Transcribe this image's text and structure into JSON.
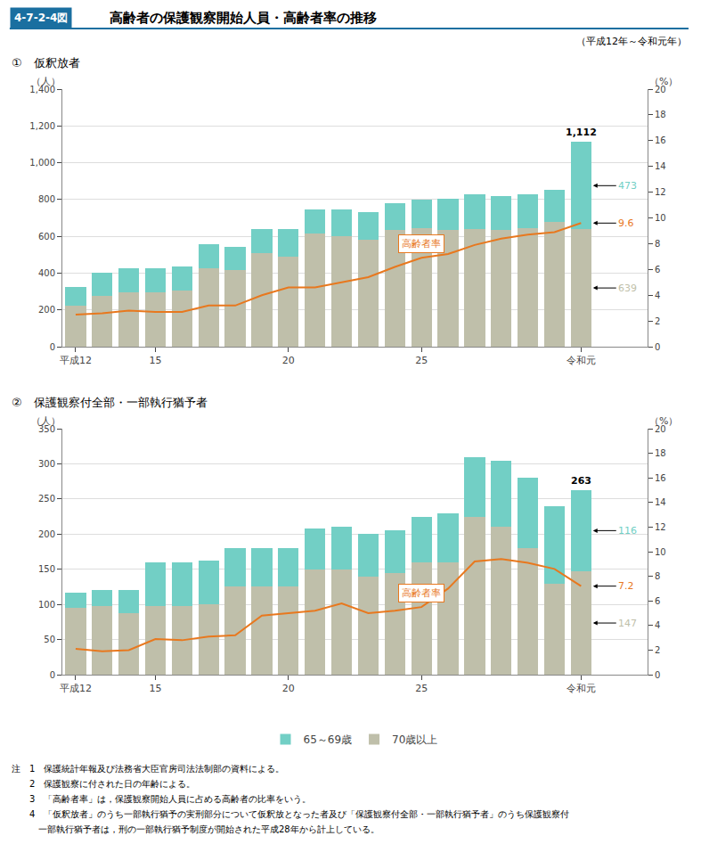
{
  "label": "4-7-2-4図",
  "title": "高齢者の保護観察開始人員・高齢者率の推移",
  "subtitle": "（平成12年～令和元年）",
  "color": "#1a6fa0",
  "legend": "bottom",
  "notes": [
    "注　1　保護統計年報及び法務省大臣官房司法法制部の資料による。",
    "　　2　保護観察に付された日の年齢による。",
    "　　3　「高齢者率」は，保護観察開始人員に占める高齢者の比率をいう。",
    "　　4　「仮釈放者」のうち一部執行猶予の実刑部分について仮釈放となった者及び「保護観察付全部・一部執行猶予者」のうち保護観察付",
    "　　　一部執行猶予者は，刑の一部執行猶予制度が開始された平成28年から計上している。"
  ],
  "chart_data": [
    {
      "type": "bar",
      "stacked": true,
      "grid": true,
      "title": "①　仮釈放者",
      "ylabel": "（人）",
      "y2label": "（%）",
      "categories": [
        "平成12",
        null,
        null,
        "15",
        null,
        null,
        null,
        null,
        "20",
        null,
        null,
        null,
        null,
        "25",
        null,
        null,
        null,
        null,
        null,
        "令和元"
      ],
      "series": [
        {
          "name": "70歳以上",
          "color": "#bfbfaa",
          "values": [
            225,
            275,
            295,
            295,
            305,
            425,
            415,
            510,
            490,
            615,
            600,
            580,
            635,
            645,
            635,
            640,
            635,
            645,
            680,
            639
          ]
        },
        {
          "name": "65～69歳",
          "color": "#72cfc5",
          "values": [
            100,
            125,
            130,
            130,
            130,
            130,
            130,
            130,
            150,
            130,
            145,
            150,
            145,
            155,
            170,
            190,
            185,
            185,
            175,
            473
          ]
        },
        {
          "name": "高齢者率",
          "type": "line",
          "axis": "y2",
          "color": "#e8781e",
          "values": [
            2.5,
            2.6,
            2.8,
            2.7,
            2.7,
            3.2,
            3.2,
            4.0,
            4.6,
            4.6,
            5.0,
            5.4,
            6.2,
            6.9,
            7.2,
            7.9,
            8.4,
            8.7,
            8.9,
            9.6
          ]
        }
      ],
      "ylim": [
        0,
        1400
      ],
      "yticks": [
        0,
        200,
        400,
        600,
        800,
        {
          "value": 1000,
          "label": "1,000"
        },
        {
          "value": 1200,
          "label": "1,200"
        },
        {
          "value": 1400,
          "label": "1,400"
        }
      ],
      "y2lim": [
        0,
        20
      ],
      "y2ticks": [
        0,
        2,
        4,
        6,
        8,
        10,
        12,
        14,
        16,
        18,
        20
      ],
      "annotations": [
        {
          "text": "1,112",
          "value": 1112
        },
        {
          "text": "473",
          "value": 473,
          "series": "65～69歳"
        },
        {
          "text": "9.6",
          "value": 9.6,
          "series": "高齢者率"
        },
        {
          "text": "639",
          "value": 639,
          "series": "70歳以上"
        }
      ]
    },
    {
      "type": "bar",
      "stacked": true,
      "grid": true,
      "title": "②　保護観察付全部・一部執行猶予者",
      "ylabel": "（人）",
      "y2label": "（%）",
      "categories": [
        "平成12",
        null,
        null,
        "15",
        null,
        null,
        null,
        null,
        "20",
        null,
        null,
        null,
        null,
        "25",
        null,
        null,
        null,
        null,
        null,
        "令和元"
      ],
      "series": [
        {
          "name": "70歳以上",
          "color": "#bfbfaa",
          "values": [
            95,
            98,
            88,
            98,
            98,
            100,
            125,
            125,
            125,
            150,
            150,
            140,
            145,
            160,
            160,
            225,
            210,
            180,
            130,
            147
          ]
        },
        {
          "name": "65～69歳",
          "color": "#72cfc5",
          "values": [
            22,
            22,
            32,
            62,
            62,
            62,
            55,
            55,
            55,
            58,
            60,
            60,
            60,
            65,
            70,
            85,
            95,
            100,
            110,
            116
          ]
        },
        {
          "name": "高齢者率",
          "type": "line",
          "axis": "y2",
          "color": "#e8781e",
          "values": [
            2.1,
            1.9,
            2.0,
            2.9,
            2.8,
            3.1,
            3.2,
            4.8,
            5.0,
            5.2,
            5.8,
            5.0,
            5.2,
            5.5,
            7.0,
            9.2,
            9.4,
            9.1,
            8.6,
            7.2
          ]
        }
      ],
      "ylim": [
        0,
        350
      ],
      "yticks": [
        0,
        50,
        100,
        150,
        200,
        250,
        300,
        350
      ],
      "y2lim": [
        0,
        20
      ],
      "y2ticks": [
        0,
        2,
        4,
        6,
        8,
        10,
        12,
        14,
        16,
        18,
        20
      ],
      "annotations": [
        {
          "text": "263",
          "value": 263
        },
        {
          "text": "116",
          "value": 116,
          "series": "65～69歳"
        },
        {
          "text": "7.2",
          "value": 7.2,
          "series": "高齢者率"
        },
        {
          "text": "147",
          "value": 147,
          "series": "70歳以上"
        }
      ]
    }
  ]
}
